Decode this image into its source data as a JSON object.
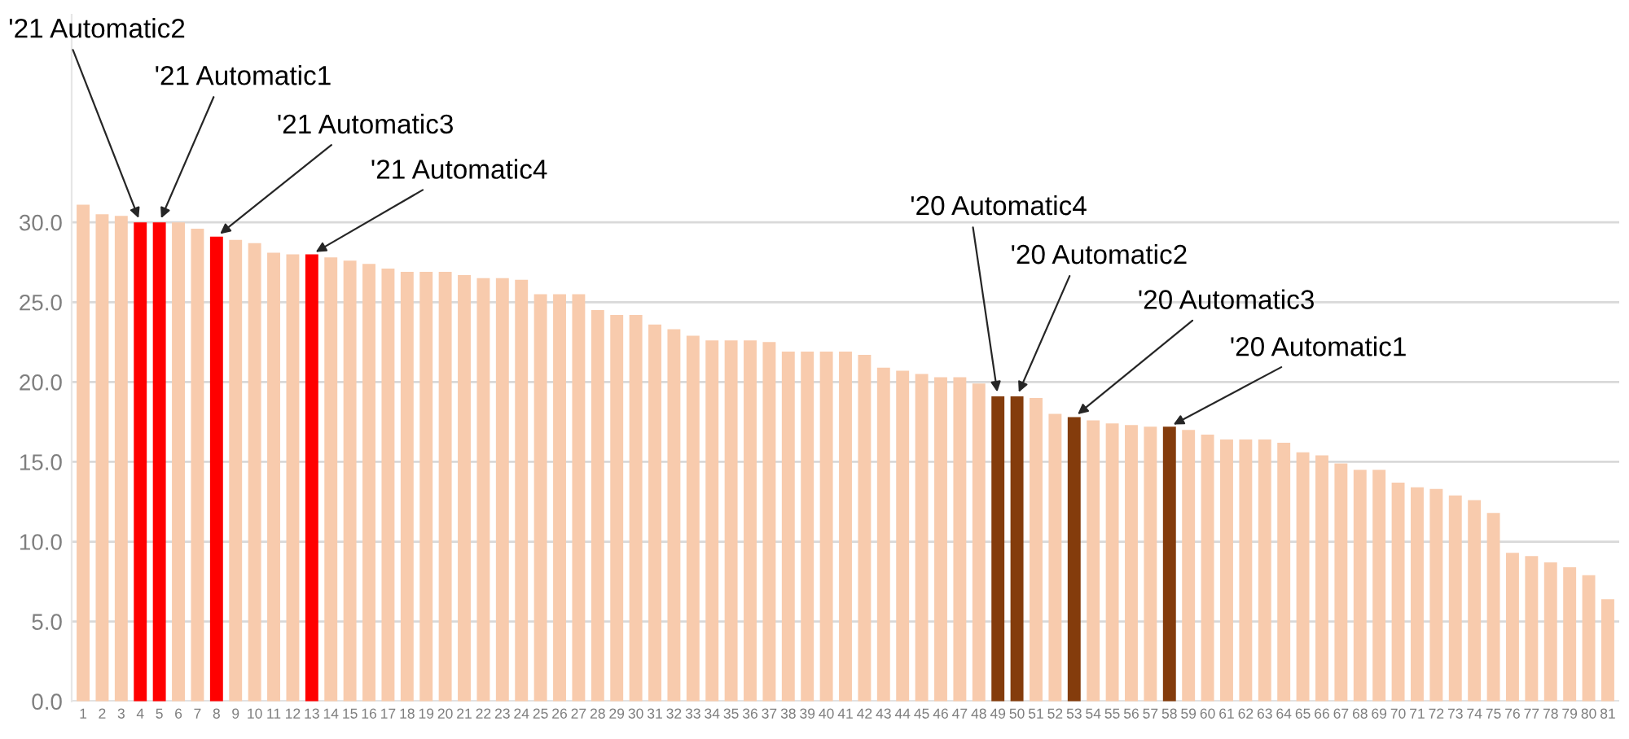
{
  "chart_data": {
    "type": "bar",
    "categories": [
      "1",
      "2",
      "3",
      "4",
      "5",
      "6",
      "7",
      "8",
      "9",
      "10",
      "11",
      "12",
      "13",
      "14",
      "15",
      "16",
      "17",
      "18",
      "19",
      "20",
      "21",
      "22",
      "23",
      "24",
      "25",
      "26",
      "27",
      "28",
      "29",
      "30",
      "31",
      "32",
      "33",
      "34",
      "35",
      "36",
      "37",
      "38",
      "39",
      "40",
      "41",
      "42",
      "43",
      "44",
      "45",
      "46",
      "47",
      "48",
      "49",
      "50",
      "51",
      "52",
      "53",
      "54",
      "55",
      "56",
      "57",
      "58",
      "59",
      "60",
      "61",
      "62",
      "63",
      "64",
      "65",
      "66",
      "67",
      "68",
      "69",
      "70",
      "71",
      "72",
      "73",
      "74",
      "75",
      "76",
      "77",
      "78",
      "79",
      "80",
      "81"
    ],
    "values": [
      31.1,
      30.5,
      30.4,
      30.0,
      30.0,
      30.0,
      29.6,
      29.1,
      28.9,
      28.7,
      28.1,
      28.0,
      28.0,
      27.8,
      27.6,
      27.4,
      27.1,
      26.9,
      26.9,
      26.9,
      26.7,
      26.5,
      26.5,
      26.4,
      25.5,
      25.5,
      25.5,
      24.5,
      24.2,
      24.2,
      23.6,
      23.3,
      22.9,
      22.6,
      22.6,
      22.6,
      22.5,
      21.9,
      21.9,
      21.9,
      21.9,
      21.7,
      20.9,
      20.7,
      20.5,
      20.3,
      20.3,
      19.9,
      19.1,
      19.1,
      19.0,
      18.0,
      17.8,
      17.6,
      17.4,
      17.3,
      17.2,
      17.2,
      17.0,
      16.7,
      16.4,
      16.4,
      16.4,
      16.2,
      15.6,
      15.4,
      14.9,
      14.5,
      14.5,
      13.7,
      13.4,
      13.3,
      12.9,
      12.6,
      11.8,
      9.3,
      9.1,
      8.7,
      8.4,
      7.9,
      6.4
    ],
    "colors": [
      "#f8cbad",
      "#f8cbad",
      "#f8cbad",
      "#ff0000",
      "#ff0000",
      "#f8cbad",
      "#f8cbad",
      "#ff0000",
      "#f8cbad",
      "#f8cbad",
      "#f8cbad",
      "#f8cbad",
      "#ff0000",
      "#f8cbad",
      "#f8cbad",
      "#f8cbad",
      "#f8cbad",
      "#f8cbad",
      "#f8cbad",
      "#f8cbad",
      "#f8cbad",
      "#f8cbad",
      "#f8cbad",
      "#f8cbad",
      "#f8cbad",
      "#f8cbad",
      "#f8cbad",
      "#f8cbad",
      "#f8cbad",
      "#f8cbad",
      "#f8cbad",
      "#f8cbad",
      "#f8cbad",
      "#f8cbad",
      "#f8cbad",
      "#f8cbad",
      "#f8cbad",
      "#f8cbad",
      "#f8cbad",
      "#f8cbad",
      "#f8cbad",
      "#f8cbad",
      "#f8cbad",
      "#f8cbad",
      "#f8cbad",
      "#f8cbad",
      "#f8cbad",
      "#f8cbad",
      "#843c0c",
      "#843c0c",
      "#f8cbad",
      "#f8cbad",
      "#843c0c",
      "#f8cbad",
      "#f8cbad",
      "#f8cbad",
      "#f8cbad",
      "#843c0c",
      "#f8cbad",
      "#f8cbad",
      "#f8cbad",
      "#f8cbad",
      "#f8cbad",
      "#f8cbad",
      "#f8cbad",
      "#f8cbad",
      "#f8cbad",
      "#f8cbad",
      "#f8cbad",
      "#f8cbad",
      "#f8cbad",
      "#f8cbad",
      "#f8cbad",
      "#f8cbad",
      "#f8cbad",
      "#f8cbad",
      "#f8cbad",
      "#f8cbad",
      "#f8cbad",
      "#f8cbad",
      "#f8cbad"
    ],
    "ylim": [
      0,
      43
    ],
    "yticks": [
      {
        "value": 0,
        "label": "0.0"
      },
      {
        "value": 5,
        "label": "5.0"
      },
      {
        "value": 10,
        "label": "10.0"
      },
      {
        "value": 15,
        "label": "15.0"
      },
      {
        "value": 20,
        "label": "20.0"
      },
      {
        "value": 25,
        "label": "25.0"
      },
      {
        "value": 30,
        "label": "30.0"
      }
    ],
    "grid": "y",
    "legend": false,
    "annotations": [
      {
        "text": "'21 Automatic2",
        "x": "4",
        "y": 30.0
      },
      {
        "text": "'21 Automatic1",
        "x": "5",
        "y": 30.0
      },
      {
        "text": "'21 Automatic3",
        "x": "8",
        "y": 29.1
      },
      {
        "text": "'21 Automatic4",
        "x": "13",
        "y": 28.0
      },
      {
        "text": "'20 Automatic4",
        "x": "49",
        "y": 19.1
      },
      {
        "text": "'20 Automatic2",
        "x": "50",
        "y": 19.1
      },
      {
        "text": "'20 Automatic3",
        "x": "53",
        "y": 17.8
      },
      {
        "text": "'20 Automatic1",
        "x": "58",
        "y": 17.2
      }
    ]
  }
}
